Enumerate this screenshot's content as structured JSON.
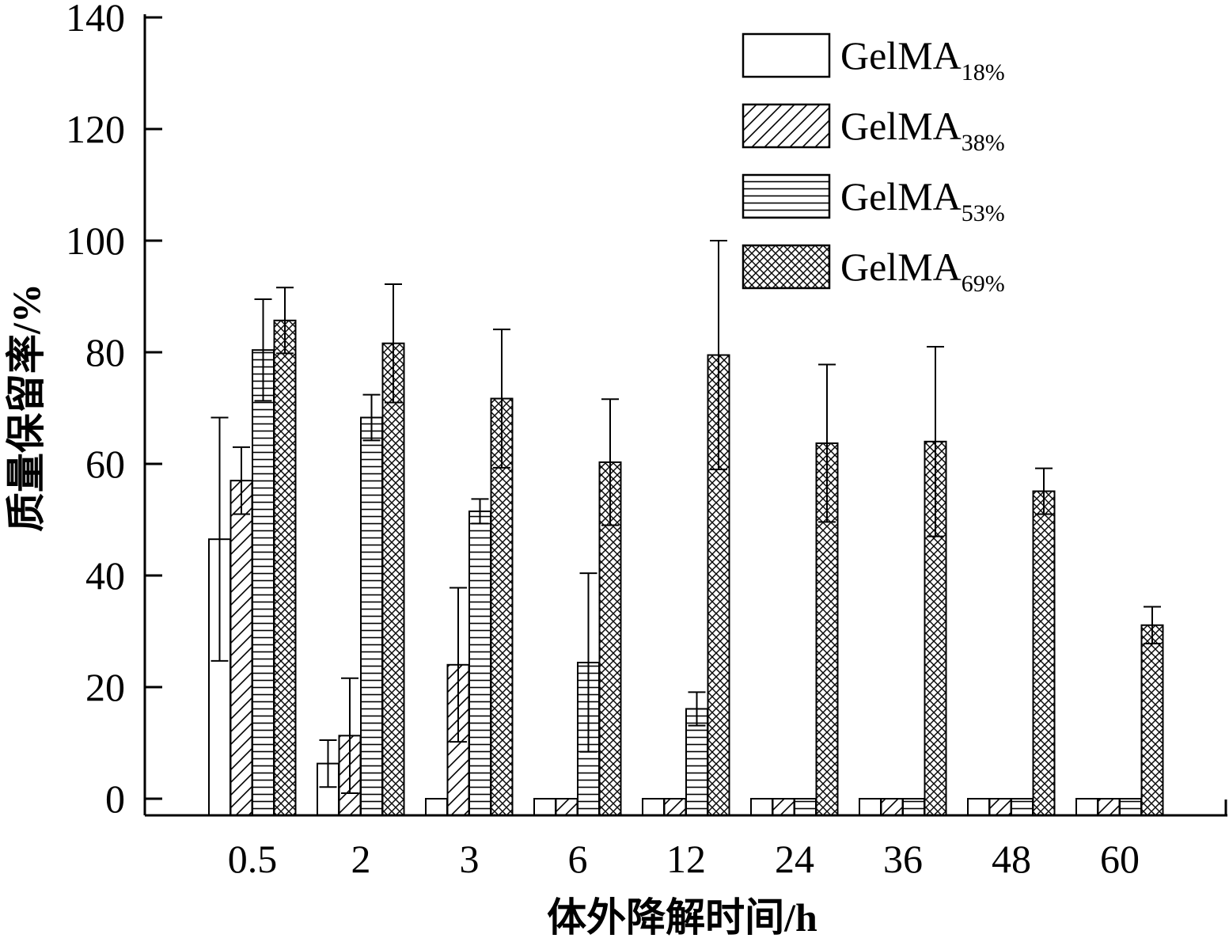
{
  "chart_data": {
    "type": "bar",
    "title": "",
    "xlabel": "体外降解时间/h",
    "ylabel": "质量保留率/%",
    "ylim": [
      -3,
      140
    ],
    "yticks": [
      0,
      20,
      40,
      60,
      80,
      100,
      120,
      140
    ],
    "categories": [
      "0.5",
      "2",
      "3",
      "6",
      "12",
      "24",
      "36",
      "48",
      "60"
    ],
    "grid": false,
    "legend_position": "top-right",
    "series": [
      {
        "name": "GelMA",
        "name_sub": "18%",
        "pattern": "blank",
        "values": [
          46.5,
          6.3,
          0,
          0,
          0,
          0,
          0,
          0,
          0
        ],
        "errors": [
          21.8,
          4.2,
          0,
          0,
          0,
          0,
          0,
          0,
          0
        ]
      },
      {
        "name": "GelMA",
        "name_sub": "38%",
        "pattern": "diagonal",
        "values": [
          57.0,
          11.3,
          24.0,
          0,
          0,
          0,
          0,
          0,
          0
        ],
        "errors": [
          6.0,
          10.3,
          13.8,
          0,
          0,
          0,
          0,
          0,
          0
        ]
      },
      {
        "name": "GelMA",
        "name_sub": "53%",
        "pattern": "horizontal",
        "values": [
          80.4,
          68.3,
          51.5,
          24.4,
          16.1,
          0,
          0,
          0,
          0
        ],
        "errors": [
          9.1,
          4.1,
          2.2,
          16.0,
          3.0,
          0,
          0,
          0,
          0
        ]
      },
      {
        "name": "GelMA",
        "name_sub": "69%",
        "pattern": "crosshatch",
        "values": [
          85.7,
          81.6,
          71.7,
          60.3,
          79.5,
          63.7,
          64.0,
          55.1,
          31.1
        ],
        "errors": [
          5.9,
          10.6,
          12.4,
          11.3,
          20.5,
          14.1,
          17.0,
          4.1,
          3.3
        ]
      }
    ]
  }
}
